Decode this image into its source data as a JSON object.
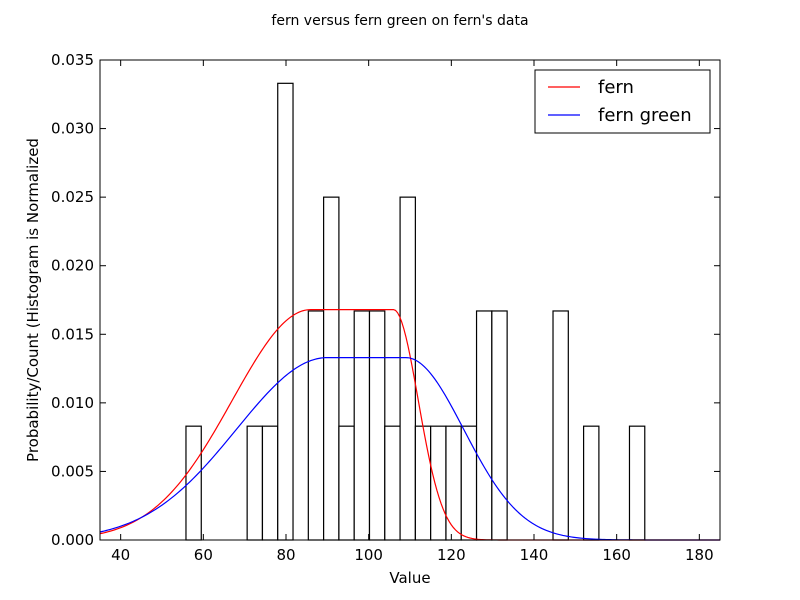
{
  "chart_data": {
    "type": "histogram-with-curves",
    "title": "fern versus fern green on fern's data",
    "xlabel": "Value",
    "ylabel": "Probability/Count (Histogram is Normalized",
    "xlim": [
      35,
      185
    ],
    "ylim": [
      0,
      0.035
    ],
    "xticks": [
      40,
      60,
      80,
      100,
      120,
      140,
      160,
      180
    ],
    "yticks": [
      "0.000",
      "0.005",
      "0.010",
      "0.015",
      "0.020",
      "0.025",
      "0.030",
      "0.035"
    ],
    "grid": false,
    "legend_position": "top-right",
    "histogram": {
      "bin_edges": [
        55.8,
        59.5,
        63.2,
        66.9,
        70.6,
        74.3,
        78.0,
        81.7,
        85.4,
        89.1,
        92.8,
        96.5,
        100.2,
        103.9,
        107.6,
        111.3,
        115.0,
        118.7,
        122.4,
        126.1,
        129.8,
        133.5,
        137.2,
        140.9,
        144.6,
        148.3,
        152.0,
        155.7,
        159.4,
        163.1,
        166.8
      ],
      "values": [
        0.0083,
        0,
        0,
        0,
        0.0083,
        0.0083,
        0.0333,
        0,
        0.0167,
        0.025,
        0.0083,
        0.0167,
        0.0167,
        0.0083,
        0.025,
        0.0083,
        0.0083,
        0.0083,
        0.0083,
        0.0167,
        0.0167,
        0,
        0,
        0,
        0.0167,
        0,
        0.0083,
        0,
        0,
        0.0083
      ]
    },
    "series": [
      {
        "name": "fern",
        "color": "#ff0000",
        "plateau_value": 0.0168,
        "plateau_start": 86,
        "plateau_end": 106,
        "rise_sigma": 19,
        "fall_sigma": 6
      },
      {
        "name": "fern green",
        "color": "#0000ff",
        "plateau_value": 0.0133,
        "plateau_start": 90,
        "plateau_end": 109,
        "rise_sigma": 22,
        "fall_sigma": 14
      }
    ]
  }
}
